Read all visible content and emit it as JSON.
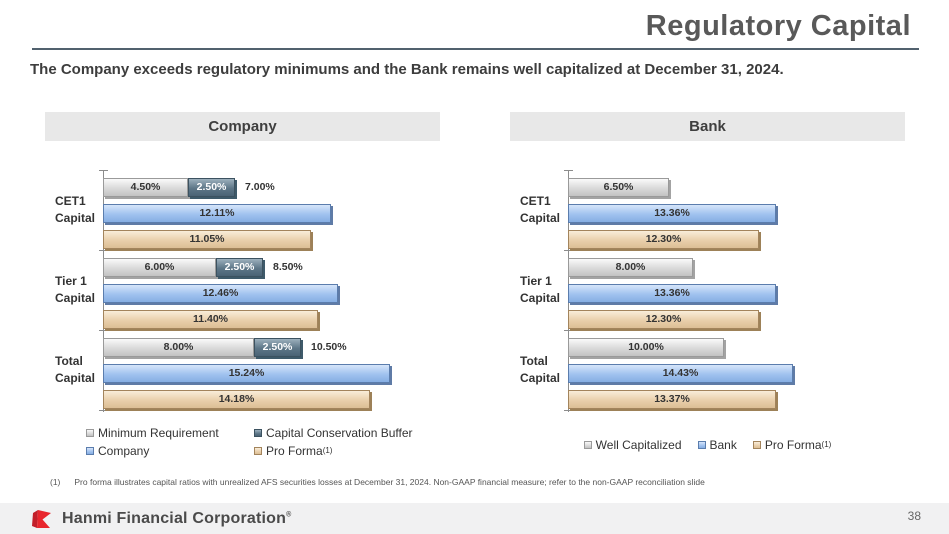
{
  "header": {
    "title": "Regulatory Capital",
    "subtitle": "The Company exceeds regulatory minimums and the Bank remains well capitalized at December 31, 2024."
  },
  "chart_data": [
    {
      "type": "bar",
      "orientation": "horizontal",
      "title": "Company",
      "categories": [
        "CET1\nCapital",
        "Tier 1\nCapital",
        "Total\nCapital"
      ],
      "series": [
        {
          "name": "Minimum Requirement",
          "color": "gray",
          "values": [
            4.5,
            6.0,
            8.0
          ]
        },
        {
          "name": "Capital Conservation Buffer",
          "color": "slate",
          "values": [
            2.5,
            2.5,
            2.5
          ]
        },
        {
          "name": "Company",
          "color": "blue",
          "values": [
            12.11,
            12.46,
            15.24
          ]
        },
        {
          "name": "Pro Forma",
          "footnote_ref": "(1)",
          "color": "tan",
          "values": [
            11.05,
            11.4,
            14.18
          ]
        }
      ],
      "rows": [
        [
          0,
          1
        ],
        [
          2
        ],
        [
          3
        ]
      ],
      "stack_total_labels": [
        "7.00%",
        "8.50%",
        "10.50%"
      ],
      "axis_max": 17.5,
      "grid": false,
      "legend_layout": "grid",
      "legend_position": "bottom"
    },
    {
      "type": "bar",
      "orientation": "horizontal",
      "title": "Bank",
      "categories": [
        "CET1\nCapital",
        "Tier 1\nCapital",
        "Total\nCapital"
      ],
      "series": [
        {
          "name": "Well Capitalized",
          "color": "gray",
          "values": [
            6.5,
            8.0,
            10.0
          ]
        },
        {
          "name": "Bank",
          "color": "blue",
          "values": [
            13.36,
            13.36,
            14.43
          ]
        },
        {
          "name": "Pro Forma",
          "footnote_ref": "(1)",
          "color": "tan",
          "values": [
            12.3,
            12.3,
            13.37
          ]
        }
      ],
      "rows": [
        [
          0
        ],
        [
          1
        ],
        [
          2
        ]
      ],
      "stack_total_labels": [],
      "axis_max": 21.2,
      "grid": false,
      "legend_layout": "row",
      "legend_position": "bottom"
    }
  ],
  "colors": {
    "gray": {
      "top": "#fafafa",
      "mid": "#d9d9d9",
      "bot": "#c2c2c2",
      "border": "#9a9a9a",
      "shadow": "#a3a3a3",
      "label": "#333333"
    },
    "slate": {
      "top": "#9cb0bd",
      "mid": "#5d7687",
      "bot": "#4a6375",
      "border": "#3c5260",
      "shadow": "#3e5a6a",
      "label": "#ffffff"
    },
    "blue": {
      "top": "#d6e5fa",
      "mid": "#a0c2ef",
      "bot": "#86aee3",
      "border": "#5b7dad",
      "shadow": "#5f7ba6",
      "label": "#333333"
    },
    "tan": {
      "top": "#f9edda",
      "mid": "#e9cfab",
      "bot": "#dcbe95",
      "border": "#a3845c",
      "shadow": "#9d8158",
      "label": "#333333"
    }
  },
  "footnote": {
    "marker": "(1)",
    "text": "Pro forma illustrates capital ratios with unrealized AFS securities losses at December 31, 2024. Non-GAAP financial measure; refer to the non-GAAP reconciliation slide"
  },
  "footer": {
    "company_name": "Hanmi Financial Corporation",
    "trademark": "®",
    "page_number": "38",
    "logo_color": "#e8262d",
    "logo_color_dark": "#c21f2a"
  }
}
